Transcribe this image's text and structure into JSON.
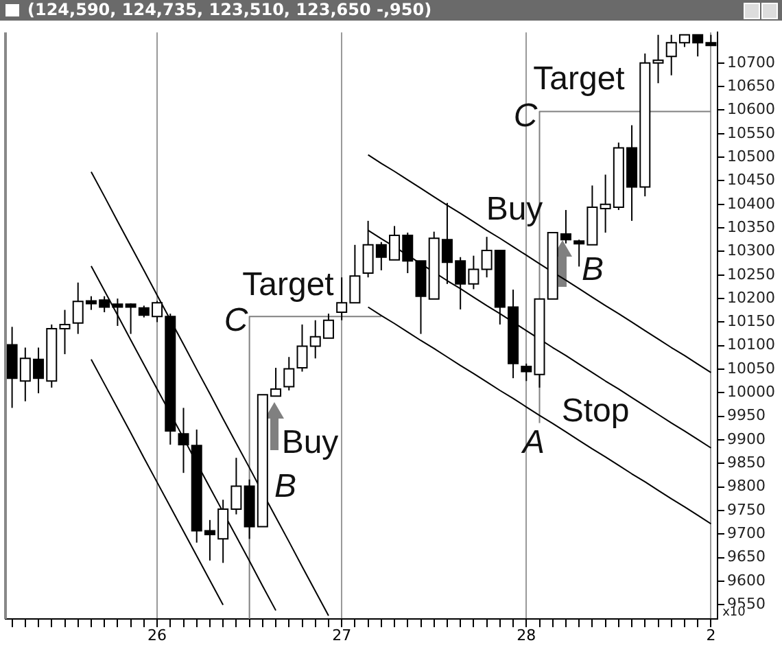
{
  "chart_data": {
    "type": "candlestick",
    "title": "(124,590, 124,735, 123,510, 123,650 -,950)",
    "categories": [
      null,
      null,
      null,
      null,
      null,
      null,
      null,
      null,
      null,
      null,
      null,
      "26",
      null,
      null,
      null,
      null,
      null,
      null,
      null,
      null,
      null,
      null,
      null,
      null,
      null,
      "27",
      null,
      null,
      null,
      null,
      null,
      null,
      null,
      null,
      null,
      null,
      null,
      null,
      null,
      "28",
      null,
      null,
      null,
      null,
      null,
      null,
      null,
      null,
      null,
      null,
      null,
      null,
      null,
      "2"
    ],
    "ohlc": [
      [
        10102,
        10140,
        9968,
        10031
      ],
      [
        10025,
        10096,
        9982,
        10073
      ],
      [
        10071,
        10096,
        9999,
        10031
      ],
      [
        10025,
        10145,
        10011,
        10136
      ],
      [
        10136,
        10176,
        10082,
        10145
      ],
      [
        10148,
        10234,
        10125,
        10194
      ],
      [
        10195,
        10205,
        10176,
        10192
      ],
      [
        10197,
        10205,
        10171,
        10182
      ],
      [
        10188,
        10200,
        10142,
        10182
      ],
      [
        10188,
        10190,
        10125,
        10182
      ],
      [
        10180,
        10185,
        10160,
        10165
      ],
      [
        10162,
        10195,
        10150,
        10191
      ],
      [
        10162,
        10168,
        9890,
        9919
      ],
      [
        9913,
        9968,
        9830,
        9890
      ],
      [
        9888,
        9922,
        9682,
        9707
      ],
      [
        9707,
        9730,
        9644,
        9699
      ],
      [
        9690,
        9773,
        9639,
        9753
      ],
      [
        9753,
        9862,
        9742,
        9802
      ],
      [
        9802,
        9816,
        9690,
        9716
      ],
      [
        9716,
        9996,
        9716,
        9996
      ],
      [
        9993,
        10053,
        9993,
        10008
      ],
      [
        10013,
        10076,
        10005,
        10051
      ],
      [
        10053,
        10145,
        10045,
        10099
      ],
      [
        10099,
        10154,
        10073,
        10119
      ],
      [
        10116,
        10168,
        10116,
        10154
      ],
      [
        10171,
        10245,
        10154,
        10191
      ],
      [
        10191,
        10314,
        10191,
        10248
      ],
      [
        10254,
        10365,
        10245,
        10314
      ],
      [
        10314,
        10320,
        10260,
        10288
      ],
      [
        10282,
        10354,
        10282,
        10334
      ],
      [
        10334,
        10340,
        10254,
        10280
      ],
      [
        10280,
        10280,
        10125,
        10205
      ],
      [
        10199,
        10342,
        10199,
        10328
      ],
      [
        10325,
        10403,
        10231,
        10277
      ],
      [
        10280,
        10288,
        10177,
        10231
      ],
      [
        10231,
        10291,
        10220,
        10262
      ],
      [
        10262,
        10331,
        10245,
        10302
      ],
      [
        10302,
        10302,
        10145,
        10182
      ],
      [
        10182,
        10219,
        10031,
        10062
      ],
      [
        10056,
        10062,
        10025,
        10045
      ],
      [
        10039,
        10199,
        10011,
        10199
      ],
      [
        10199,
        10340,
        10199,
        10340
      ],
      [
        10337,
        10388,
        10317,
        10325
      ],
      [
        10322,
        10325,
        10268,
        10317
      ],
      [
        10314,
        10440,
        10314,
        10394
      ],
      [
        10391,
        10463,
        10340,
        10400
      ],
      [
        10394,
        10531,
        10388,
        10520
      ],
      [
        10520,
        10568,
        10365,
        10437
      ],
      [
        10437,
        10720,
        10417,
        10700
      ],
      [
        10700,
        10760,
        10657,
        10706
      ],
      [
        10714,
        10760,
        10674,
        10743
      ],
      [
        10743,
        10760,
        10734,
        10760
      ],
      [
        10760,
        10760,
        10714,
        10743
      ],
      [
        10743,
        10760,
        10740,
        10740
      ]
    ],
    "series": [
      {
        "type": "line",
        "color": "#000000",
        "values": [
          null,
          null,
          null,
          null,
          null,
          null,
          10469,
          10417,
          10364,
          10312,
          10260,
          10207,
          10155,
          10103,
          10050,
          9998,
          9945,
          9893,
          9841,
          9788,
          9736,
          9684,
          9631,
          9579,
          9527,
          null,
          null,
          null,
          null,
          null,
          null,
          null,
          null,
          null,
          null,
          null,
          null,
          null,
          null,
          null,
          null,
          null,
          null,
          null,
          null,
          null,
          null,
          null,
          null,
          null,
          null,
          null,
          null,
          null
        ]
      },
      {
        "type": "line",
        "color": "#000000",
        "values": [
          null,
          null,
          null,
          null,
          null,
          null,
          10269,
          10217,
          10165,
          10112,
          10060,
          10008,
          9956,
          9904,
          9851,
          9799,
          9747,
          9695,
          9643,
          9590,
          9538,
          null,
          null,
          null,
          null,
          null,
          null,
          null,
          null,
          null,
          null,
          null,
          null,
          null,
          null,
          null,
          null,
          null,
          null,
          null,
          null,
          null,
          null,
          null,
          null,
          null,
          null,
          null,
          null,
          null,
          null,
          null,
          null,
          null
        ]
      },
      {
        "type": "line",
        "color": "#000000",
        "values": [
          null,
          null,
          null,
          null,
          null,
          null,
          10071,
          10019,
          9967,
          9915,
          9862,
          9810,
          9758,
          9706,
          9654,
          9602,
          9550,
          null,
          null,
          null,
          null,
          null,
          null,
          null,
          null,
          null,
          null,
          null,
          null,
          null,
          null,
          null,
          null,
          null,
          null,
          null,
          null,
          null,
          null,
          null,
          null,
          null,
          null,
          null,
          null,
          null,
          null,
          null,
          null,
          null,
          null,
          null,
          null,
          null
        ]
      },
      {
        "type": "line",
        "color": "#000000",
        "values": [
          null,
          null,
          null,
          null,
          null,
          null,
          null,
          null,
          null,
          null,
          null,
          null,
          null,
          null,
          null,
          null,
          null,
          null,
          null,
          null,
          null,
          null,
          null,
          null,
          null,
          null,
          null,
          10505,
          10487,
          10470,
          10452,
          10434,
          10416,
          10398,
          10381,
          10363,
          10345,
          10328,
          10310,
          10292,
          10274,
          10256,
          10239,
          10221,
          10203,
          10185,
          10168,
          10150,
          10132,
          10114,
          10096,
          10079,
          10061,
          10043
        ]
      },
      {
        "type": "line",
        "color": "#000000",
        "values": [
          null,
          null,
          null,
          null,
          null,
          null,
          null,
          null,
          null,
          null,
          null,
          null,
          null,
          null,
          null,
          null,
          null,
          null,
          null,
          null,
          null,
          null,
          null,
          null,
          null,
          null,
          null,
          10345,
          10327,
          10310,
          10292,
          10274,
          10256,
          10238,
          10221,
          10203,
          10185,
          10168,
          10150,
          10132,
          10114,
          10096,
          10079,
          10061,
          10043,
          10025,
          10008,
          9990,
          9972,
          9954,
          9936,
          9919,
          9901,
          9883
        ]
      },
      {
        "type": "line",
        "color": "#000000",
        "values": [
          null,
          null,
          null,
          null,
          null,
          null,
          null,
          null,
          null,
          null,
          null,
          null,
          null,
          null,
          null,
          null,
          null,
          null,
          null,
          null,
          null,
          null,
          null,
          null,
          null,
          null,
          null,
          10182,
          10164,
          10147,
          10129,
          10111,
          10094,
          10076,
          10058,
          10041,
          10023,
          10005,
          9988,
          9970,
          9952,
          9935,
          9917,
          9899,
          9881,
          9864,
          9846,
          9828,
          9811,
          9793,
          9775,
          9758,
          9740,
          9722
        ]
      },
      {
        "type": "step",
        "color": "#808080",
        "values": [
          null,
          null,
          null,
          null,
          null,
          null,
          null,
          null,
          null,
          null,
          null,
          null,
          null,
          null,
          null,
          null,
          null,
          null,
          9520,
          10162,
          10162,
          10162,
          10162,
          10162,
          10162,
          10162,
          10162,
          10162,
          10162,
          null,
          null,
          null,
          null,
          null,
          null,
          null,
          null,
          null,
          null,
          null,
          null,
          null,
          null,
          null,
          null,
          null,
          null,
          null,
          null,
          null,
          null,
          null,
          null,
          null
        ]
      },
      {
        "type": "step",
        "color": "#808080",
        "values": [
          null,
          null,
          null,
          null,
          null,
          null,
          null,
          null,
          null,
          null,
          null,
          null,
          null,
          null,
          null,
          null,
          null,
          null,
          null,
          null,
          null,
          null,
          null,
          null,
          null,
          null,
          null,
          null,
          null,
          null,
          null,
          null,
          null,
          null,
          null,
          null,
          null,
          null,
          null,
          null,
          9936,
          10597,
          10597,
          10597,
          10597,
          10597,
          10597,
          10597,
          10597,
          10597,
          10597,
          10597,
          10597,
          10597
        ]
      }
    ],
    "ylim": [
      9520,
      10765
    ],
    "yticks": [
      9550,
      9600,
      9650,
      9700,
      9750,
      9800,
      9850,
      9900,
      9950,
      10000,
      10050,
      10100,
      10150,
      10200,
      10250,
      10300,
      10350,
      10400,
      10450,
      10500,
      10550,
      10600,
      10650,
      10700
    ],
    "grid": "x",
    "legend": false,
    "annotations": [
      "Target",
      "C",
      "Buy",
      "B",
      "Target",
      "C",
      "Buy",
      "B",
      "Stop",
      "A",
      "x10"
    ]
  }
}
